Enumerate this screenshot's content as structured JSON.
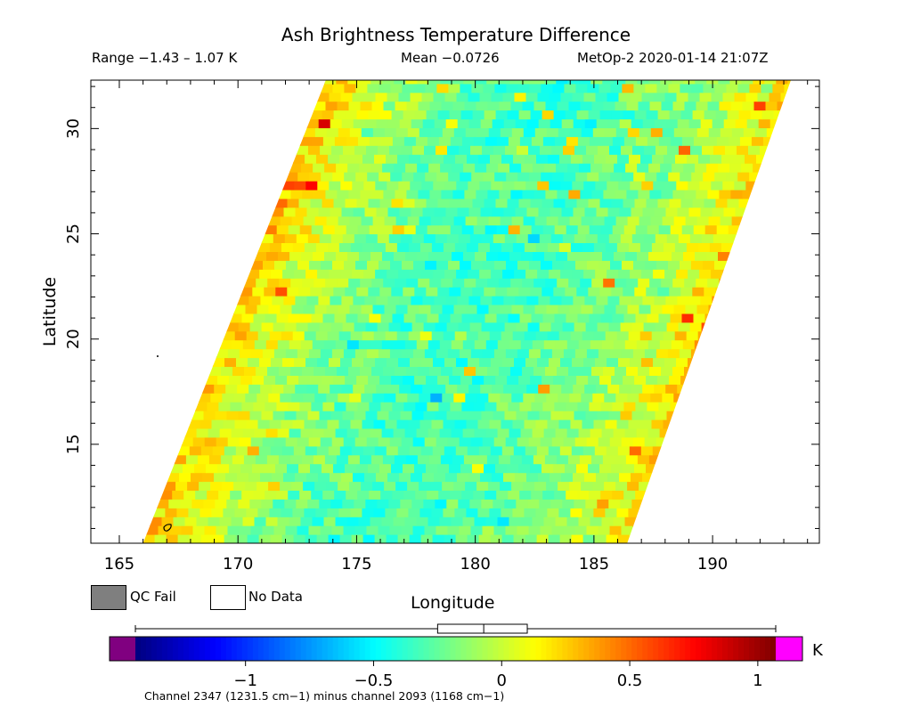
{
  "header": {
    "title": "Ash Brightness Temperature Difference",
    "range": "Range −1.43 – 1.07 K",
    "mean": "Mean −0.0726",
    "satellite": "MetOp-2 2020-01-14 21:07Z"
  },
  "legend": {
    "qc_fail": "QC Fail",
    "no_data": "No Data"
  },
  "colorbar": {
    "unit": "K",
    "footnote": "Channel 2347 (1231.5 cm−1) minus channel 2093 (1168 cm−1)",
    "ticks": [
      {
        "value": -1,
        "label": "−1"
      },
      {
        "value": -0.5,
        "label": "−0.5"
      },
      {
        "value": 0,
        "label": "0"
      },
      {
        "value": 0.5,
        "label": "0.5"
      },
      {
        "value": 1,
        "label": "1"
      }
    ],
    "colors": {
      "under": "#800080",
      "over": "#ff00ff",
      "stops": [
        "#00007f",
        "#0000ff",
        "#007fff",
        "#00ffff",
        "#7fff7f",
        "#ffff00",
        "#ff7f00",
        "#ff0000",
        "#7f0000"
      ],
      "qc_fail": "#7f7f7f"
    }
  },
  "chart_data": {
    "type": "heatmap",
    "title": "Ash Brightness Temperature Difference",
    "xlabel": "Longitude",
    "ylabel": "Latitude",
    "xlim": [
      163.8,
      194.5
    ],
    "ylim": [
      10.3,
      32.3
    ],
    "xticks": [
      165,
      170,
      175,
      180,
      185,
      190
    ],
    "yticks": [
      15,
      20,
      25,
      30
    ],
    "value_range": [
      -1.43,
      1.07
    ],
    "mean": -0.0726,
    "colorbar_range": [
      -1.43,
      1.07
    ],
    "swath_corners": {
      "bottom_left": [
        166.0,
        10.3
      ],
      "bottom_right": [
        186.4,
        10.3
      ],
      "top_right": [
        193.3,
        32.3
      ],
      "top_left": [
        173.7,
        32.3
      ]
    },
    "box_whisker": {
      "min": -1.43,
      "q1": -0.25,
      "median": -0.07,
      "q3": 0.1,
      "max": 1.07
    }
  }
}
